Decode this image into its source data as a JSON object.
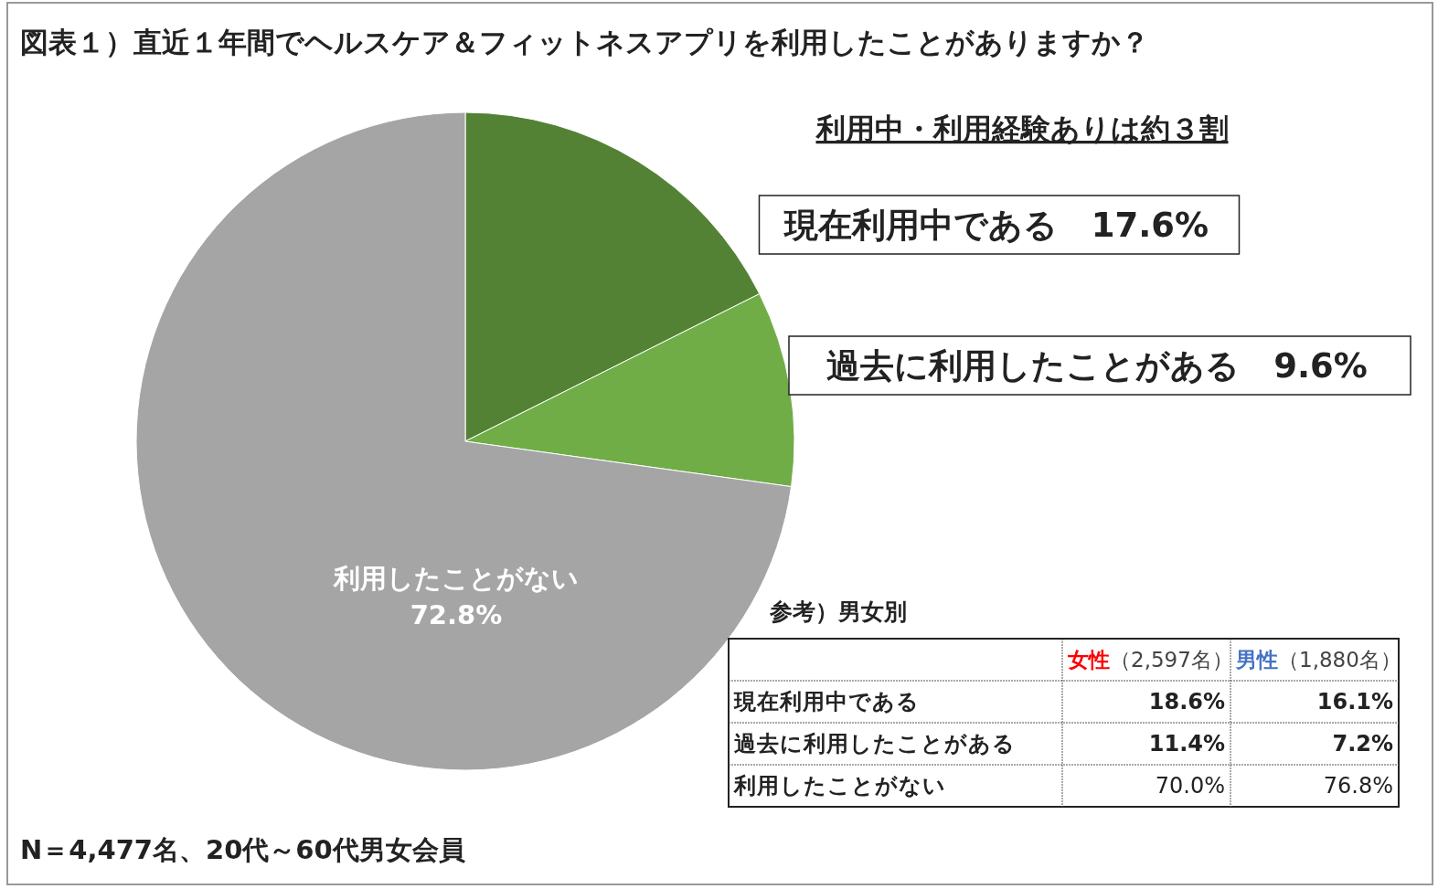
{
  "chart_data": [
    {
      "type": "pie",
      "title": "図表１）直近１年間でヘルスケア＆フィットネスアプリを利用したことがありますか？",
      "subtitle": "利用中・利用経験ありは約３割",
      "categories": [
        "現在利用中である",
        "過去に利用したことがある",
        "利用したことがない"
      ],
      "values": [
        17.6,
        9.6,
        72.8
      ],
      "colors": [
        "#548235",
        "#70ad47",
        "#a5a5a5"
      ],
      "value_labels": [
        "17.6%",
        "9.6%",
        "72.8%"
      ],
      "annotations": [
        "N＝4,477名、20代～60代男女会員"
      ]
    },
    {
      "type": "other",
      "title": "参考）男女別",
      "annotations": [
        "女性",
        "（2,597名）",
        "男性",
        "（1,880名）",
        "現在利用中である",
        "18.6%",
        "16.1%",
        "過去に利用したことがある",
        "11.4%",
        "7.2%",
        "利用したことがない",
        "70.0%",
        "76.8%"
      ]
    }
  ]
}
